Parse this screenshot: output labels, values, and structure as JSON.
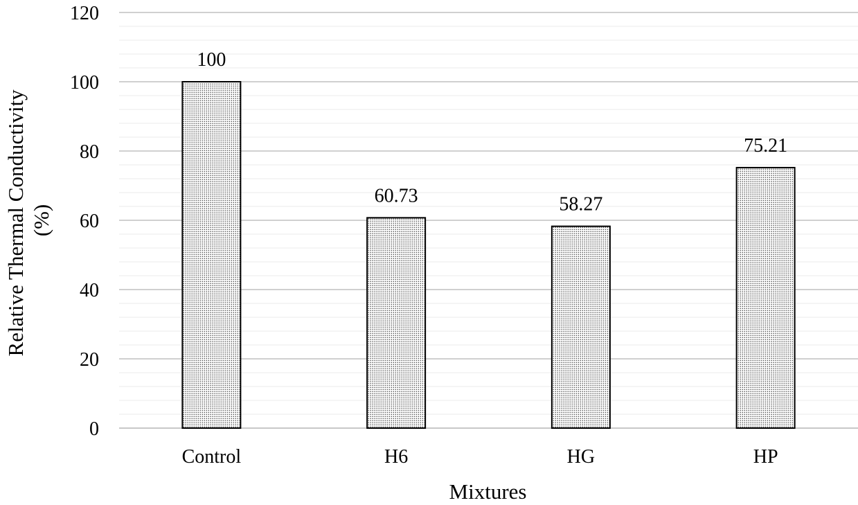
{
  "chart_data": {
    "type": "bar",
    "title": "",
    "xlabel": "Mixtures",
    "ylabel_lines": [
      "Relative Thermal Conductivity",
      "(%)"
    ],
    "categories": [
      "Control",
      "H6",
      "HG",
      "HP"
    ],
    "values": [
      100,
      60.73,
      58.27,
      75.21
    ],
    "data_labels": [
      "100",
      "60.73",
      "58.27",
      "75.21"
    ],
    "ylim": [
      0,
      120
    ],
    "y_major_ticks": [
      0,
      20,
      40,
      60,
      80,
      100,
      120
    ],
    "y_minor_step": 4,
    "grid": true,
    "legend": "none",
    "bar_pattern": "dotted",
    "colors": {
      "bar_fill": "#ffffff",
      "bar_dot": "#3a3a3a",
      "bar_stroke": "#000000",
      "major_grid": "#d0d0d0",
      "minor_grid": "#ebebeb",
      "axis_line": "#c8c8c8"
    }
  }
}
